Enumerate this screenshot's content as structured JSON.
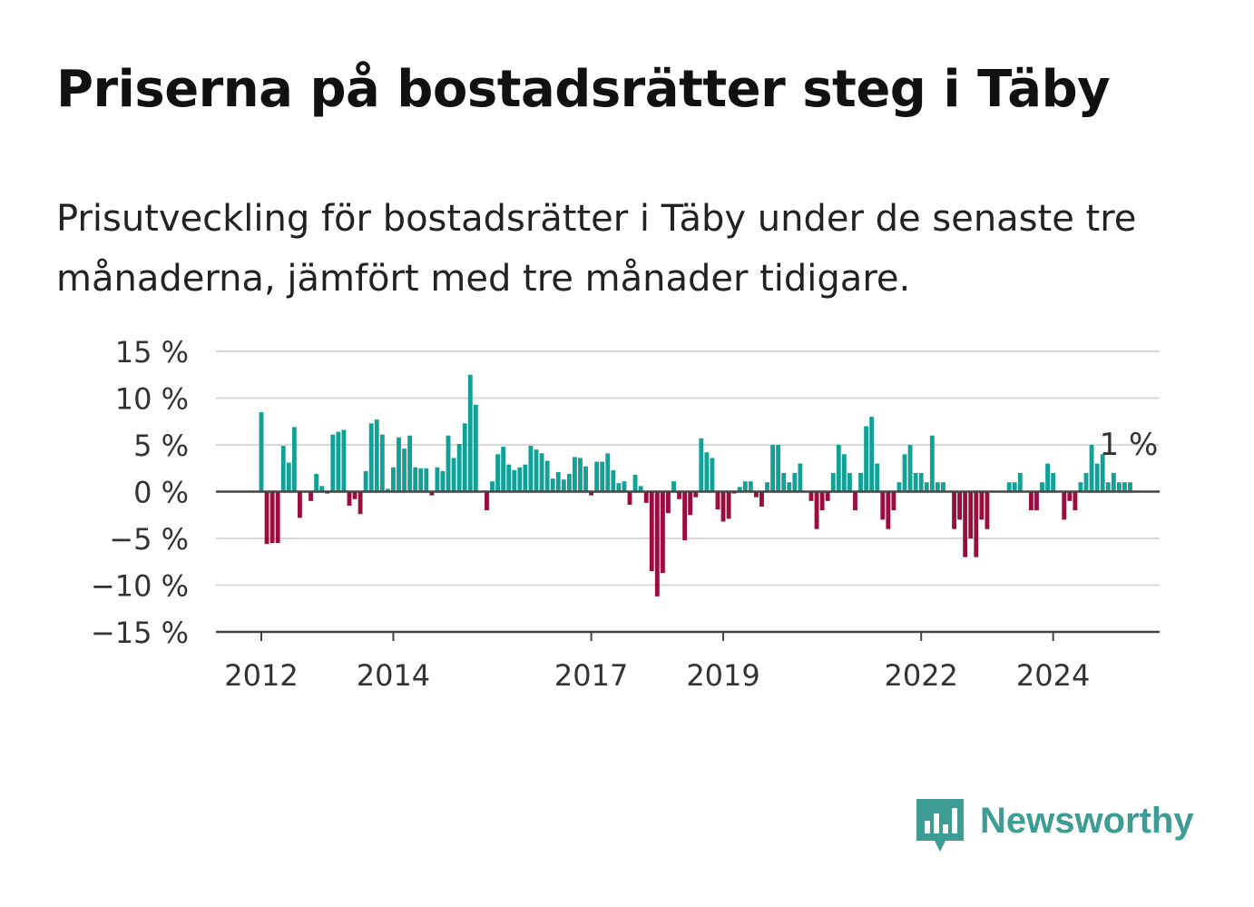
{
  "title": "Priserna på bostadsrätter steg i Täby",
  "subtitle": "Prisutveckling för bostadsrätter i Täby under de senaste tre månaderna, jämfört med tre månader tidigare.",
  "brand": {
    "name": "Newsworthy",
    "color": "#3d9c94",
    "icon": "bar-chart-speech-bubble-icon"
  },
  "colors": {
    "positive": "#12a197",
    "negative": "#9b0d3f",
    "grid": "#d9d9d9",
    "axis": "#444444"
  },
  "chart_data": {
    "type": "bar",
    "title": "Priserna på bostadsrätter steg i Täby",
    "xlabel": "",
    "ylabel": "",
    "ylim": [
      -15,
      15
    ],
    "yticks": [
      15,
      10,
      5,
      0,
      -5,
      -10,
      -15
    ],
    "ytick_labels": [
      "15 %",
      "10 %",
      "5 %",
      "0 %",
      "−5 %",
      "−10 %",
      "−15 %"
    ],
    "x_start": "2012-01",
    "xticks": [
      "2012",
      "2014",
      "2017",
      "2019",
      "2022",
      "2024"
    ],
    "grid": true,
    "last_label": "1 %",
    "values": [
      8.5,
      -5.6,
      -5.5,
      -5.5,
      4.9,
      3.1,
      6.9,
      -2.8,
      0,
      -1,
      1.9,
      0.6,
      -0.2,
      6.1,
      6.4,
      6.6,
      -1.5,
      -0.8,
      -2.4,
      2.2,
      7.3,
      7.7,
      6.1,
      0.3,
      2.6,
      5.8,
      4.6,
      6,
      2.6,
      2.5,
      2.5,
      -0.4,
      2.6,
      2.2,
      6,
      3.6,
      5.1,
      7.3,
      12.5,
      9.3,
      0,
      -2,
      1.1,
      4,
      4.8,
      2.9,
      2.3,
      2.6,
      2.9,
      4.9,
      4.5,
      4.1,
      3.3,
      1.4,
      2.1,
      1.3,
      1.9,
      3.7,
      3.6,
      2.7,
      -0.4,
      3.2,
      3.2,
      4.1,
      2.3,
      0.9,
      1.1,
      -1.4,
      1.8,
      0.6,
      -1.2,
      -8.5,
      -11.2,
      -8.7,
      -2.3,
      1.1,
      -0.8,
      -5.2,
      -2.5,
      -0.6,
      5.7,
      4.2,
      3.6,
      -1.9,
      -3.2,
      -2.9,
      -0.2,
      0.5,
      1.1,
      1.1,
      -0.6,
      -1.6,
      1,
      5,
      5,
      2,
      1,
      2,
      3,
      0,
      -1,
      -4,
      -2,
      -1,
      2,
      5,
      4,
      2,
      -2,
      2,
      7,
      8,
      3,
      -3,
      -4,
      -2,
      1,
      4,
      5,
      2,
      2,
      1,
      6,
      1,
      1,
      0,
      -4,
      -3,
      -7,
      -5,
      -7,
      -3,
      -4,
      0,
      0,
      0,
      1,
      1,
      2,
      0,
      -2,
      -2,
      1,
      3,
      2,
      0,
      -3,
      -1,
      -2,
      1,
      2,
      5,
      3,
      4,
      1,
      2,
      1,
      1,
      1
    ]
  }
}
